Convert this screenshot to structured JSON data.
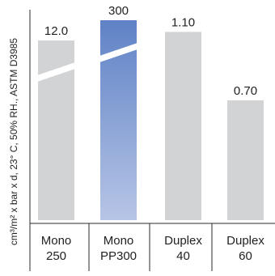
{
  "chart_data": {
    "type": "bar",
    "axis_break": true,
    "ylabel": "cm³/m² x bar x d, 23° C, 50% RH., ASTM D3985",
    "categories": [
      {
        "line1": "Mono",
        "line2": "250"
      },
      {
        "line1": "Mono",
        "line2": "PP300"
      },
      {
        "line1": "Duplex",
        "line2": "40"
      },
      {
        "line1": "Duplex",
        "line2": "60"
      }
    ],
    "values": [
      12.0,
      300,
      1.1,
      0.7
    ],
    "value_labels": [
      "12.0",
      "300",
      "1.10",
      "0.70"
    ],
    "bars": [
      {
        "broken": true,
        "highlight": false
      },
      {
        "broken": true,
        "highlight": true
      },
      {
        "broken": false,
        "highlight": false
      },
      {
        "broken": false,
        "highlight": false
      }
    ],
    "colors": {
      "bar": "#d2d3d5",
      "highlight_top": "#5f82c6",
      "highlight_bottom": "#b7c5e6",
      "axis": "#2b2b2b",
      "text": "#222222"
    }
  }
}
